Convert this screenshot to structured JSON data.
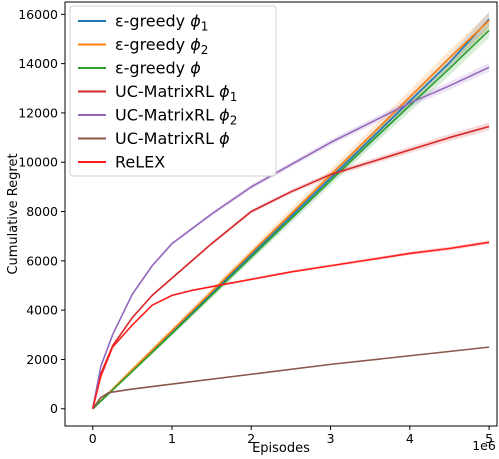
{
  "chart_data": {
    "type": "line",
    "xlabel": "Episodes",
    "ylabel": "Cumulative Regret",
    "x_multiplier_label": "1e6",
    "xlim": [
      -0.35,
      5.1
    ],
    "ylim": [
      -700,
      16500
    ],
    "x_ticks": [
      0,
      1,
      2,
      3,
      4,
      5
    ],
    "y_ticks": [
      0,
      2000,
      4000,
      6000,
      8000,
      10000,
      12000,
      14000,
      16000
    ],
    "legend_position": "upper-left",
    "series": [
      {
        "name": "ε-greedy ϕ₁",
        "legend": {
          "prefix": "ε-greedy ",
          "symbol": "ϕ",
          "subscript": "1"
        },
        "color": "#1f77b4",
        "x": [
          0,
          0.5,
          1,
          1.5,
          2,
          2.5,
          3,
          3.5,
          4,
          4.5,
          5
        ],
        "y": [
          0,
          1560,
          3120,
          4680,
          6240,
          7800,
          9360,
          10920,
          12480,
          14040,
          15800
        ],
        "band": 250
      },
      {
        "name": "ε-greedy ϕ₂",
        "legend": {
          "prefix": "ε-greedy ",
          "symbol": "ϕ",
          "subscript": "2"
        },
        "color": "#ff7f0e",
        "x": [
          0,
          0.5,
          1,
          1.5,
          2,
          2.5,
          3,
          3.5,
          4,
          4.5,
          5
        ],
        "y": [
          0,
          1590,
          3170,
          4750,
          6330,
          7900,
          9480,
          11060,
          12640,
          14220,
          15750
        ],
        "band": 280
      },
      {
        "name": "ε-greedy ϕ",
        "legend": {
          "prefix": "ε-greedy ",
          "symbol": "ϕ",
          "subscript": ""
        },
        "color": "#2ca02c",
        "x": [
          0,
          0.5,
          1,
          1.5,
          2,
          2.5,
          3,
          3.5,
          4,
          4.5,
          5
        ],
        "y": [
          0,
          1520,
          3050,
          4600,
          6150,
          7700,
          9250,
          10800,
          12300,
          13800,
          15350
        ],
        "band": 250
      },
      {
        "name": "UC-MatrixRL ϕ₁",
        "legend": {
          "prefix": "UC-MatrixRL ",
          "symbol": "ϕ",
          "subscript": "1"
        },
        "color": "#d62728",
        "x": [
          0,
          0.1,
          0.25,
          0.5,
          0.75,
          1,
          1.5,
          2,
          2.5,
          3,
          3.5,
          4,
          4.5,
          5
        ],
        "y": [
          0,
          1400,
          2550,
          3700,
          4600,
          5300,
          6700,
          8000,
          8800,
          9500,
          10000,
          10500,
          11000,
          11450
        ],
        "band": 130
      },
      {
        "name": "UC-MatrixRL ϕ₂",
        "legend": {
          "prefix": "UC-MatrixRL ",
          "symbol": "ϕ",
          "subscript": "2"
        },
        "color": "#9467bd",
        "x": [
          0,
          0.1,
          0.25,
          0.5,
          0.75,
          1,
          1.5,
          2,
          2.5,
          3,
          3.5,
          4,
          4.5,
          5
        ],
        "y": [
          0,
          1700,
          3000,
          4650,
          5800,
          6700,
          7900,
          9000,
          9900,
          10800,
          11600,
          12400,
          13100,
          13850
        ],
        "band": 150
      },
      {
        "name": "UC-MatrixRL ϕ",
        "legend": {
          "prefix": "UC-MatrixRL ",
          "symbol": "ϕ",
          "subscript": ""
        },
        "color": "#8c564b",
        "x": [
          0,
          0.1,
          0.2,
          0.5,
          1,
          2,
          3,
          4,
          5
        ],
        "y": [
          0,
          450,
          650,
          800,
          1000,
          1400,
          1800,
          2150,
          2500
        ],
        "band": 0
      },
      {
        "name": "ReLEX",
        "legend": {
          "prefix": "ReLEX",
          "symbol": "",
          "subscript": ""
        },
        "color": "#ff1c1c",
        "x": [
          0,
          0.1,
          0.25,
          0.5,
          0.75,
          1,
          1.25,
          1.5,
          2,
          2.5,
          3,
          3.5,
          4,
          4.5,
          5
        ],
        "y": [
          0,
          1300,
          2500,
          3400,
          4200,
          4600,
          4800,
          4950,
          5250,
          5550,
          5800,
          6050,
          6300,
          6500,
          6750
        ],
        "band": 70
      }
    ]
  }
}
